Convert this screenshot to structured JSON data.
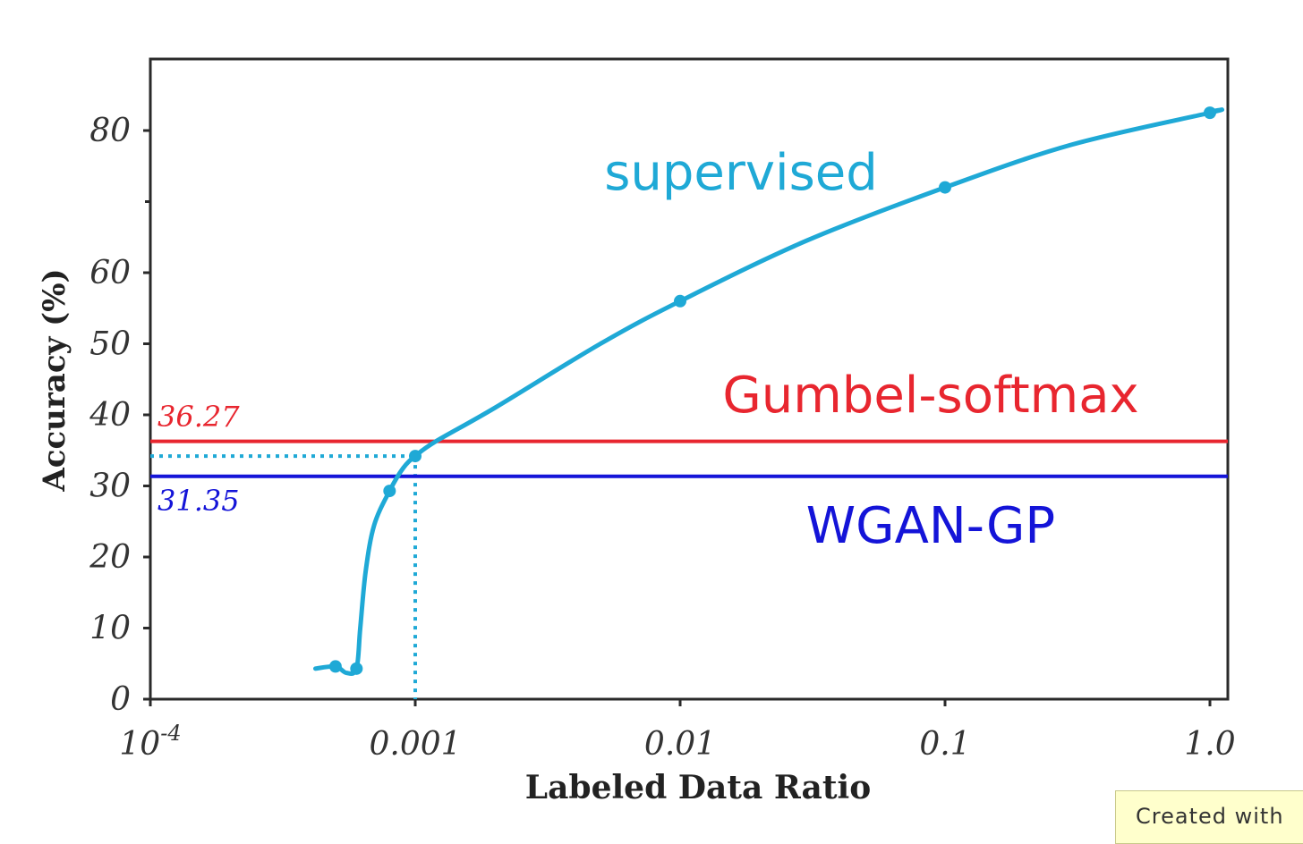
{
  "chart_data": {
    "type": "line",
    "xlabel": "Labeled Data Ratio",
    "ylabel": "Accuracy (%)",
    "xscale": "log",
    "xlim": [
      0.0001,
      1.0
    ],
    "ylim": [
      0,
      90
    ],
    "x_ticks": [
      {
        "value": 0.0001,
        "base": "10",
        "exp": "-4"
      },
      {
        "value": 0.001,
        "label": "0.001"
      },
      {
        "value": 0.01,
        "label": "0.01"
      },
      {
        "value": 0.1,
        "label": "0.1"
      },
      {
        "value": 1.0,
        "label": "1.0"
      }
    ],
    "y_ticks": [
      0,
      10,
      20,
      30,
      40,
      50,
      60,
      80
    ],
    "grid": false,
    "series": [
      {
        "name": "supervised",
        "color": "#1fa9d6",
        "marker_points": [
          {
            "x": 0.0005,
            "y": 4.6
          },
          {
            "x": 0.0006,
            "y": 4.3
          },
          {
            "x": 0.0008,
            "y": 29.3
          },
          {
            "x": 0.001,
            "y": 34.2
          },
          {
            "x": 0.01,
            "y": 56.0
          },
          {
            "x": 0.1,
            "y": 72.0
          },
          {
            "x": 1.0,
            "y": 82.5
          }
        ],
        "curve_points": [
          {
            "x": 0.00042,
            "y": 4.3
          },
          {
            "x": 0.0005,
            "y": 4.6
          },
          {
            "x": 0.00055,
            "y": 3.7
          },
          {
            "x": 0.0006,
            "y": 4.3
          },
          {
            "x": 0.00062,
            "y": 10.0
          },
          {
            "x": 0.00065,
            "y": 18.0
          },
          {
            "x": 0.0007,
            "y": 24.5
          },
          {
            "x": 0.0008,
            "y": 29.3
          },
          {
            "x": 0.0009,
            "y": 32.5
          },
          {
            "x": 0.001,
            "y": 34.2
          },
          {
            "x": 0.0012,
            "y": 36.3
          },
          {
            "x": 0.002,
            "y": 41.0
          },
          {
            "x": 0.005,
            "y": 50.0
          },
          {
            "x": 0.01,
            "y": 56.0
          },
          {
            "x": 0.03,
            "y": 64.5
          },
          {
            "x": 0.1,
            "y": 72.0
          },
          {
            "x": 0.3,
            "y": 78.0
          },
          {
            "x": 1.0,
            "y": 82.5
          },
          {
            "x": 1.05,
            "y": 82.8
          }
        ]
      },
      {
        "name": "Gumbel-softmax",
        "color": "#e8262f",
        "y": 36.27
      },
      {
        "name": "WGAN-GP",
        "color": "#1414d8",
        "y": 31.35
      }
    ],
    "annotations": [
      {
        "text": "36.27",
        "color": "#e8262f"
      },
      {
        "text": "31.35",
        "color": "#1414d8"
      }
    ],
    "reference_point": {
      "x": 0.001,
      "y": 34.2
    }
  },
  "watermark": "Created with"
}
